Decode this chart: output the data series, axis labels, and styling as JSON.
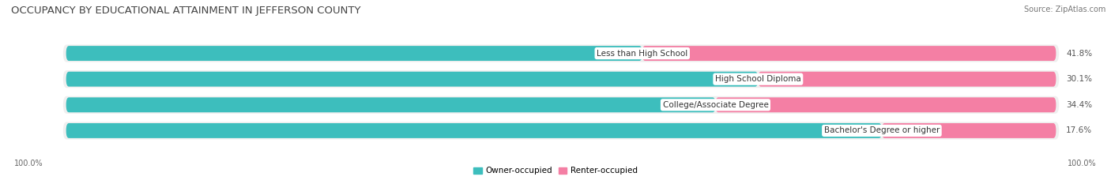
{
  "title": "OCCUPANCY BY EDUCATIONAL ATTAINMENT IN JEFFERSON COUNTY",
  "source": "Source: ZipAtlas.com",
  "categories": [
    "Less than High School",
    "High School Diploma",
    "College/Associate Degree",
    "Bachelor's Degree or higher"
  ],
  "owner_pct": [
    58.2,
    69.9,
    65.6,
    82.4
  ],
  "renter_pct": [
    41.8,
    30.1,
    34.4,
    17.6
  ],
  "owner_color": "#3DBEBD",
  "renter_color": "#F47FA4",
  "row_bg_color": "#EFEFEF",
  "fig_bg_color": "#FFFFFF",
  "title_fontsize": 9.5,
  "source_fontsize": 7,
  "pct_fontsize": 7.5,
  "cat_fontsize": 7.5,
  "axis_label_fontsize": 7,
  "legend_fontsize": 7.5,
  "left_axis_label": "100.0%",
  "right_axis_label": "100.0%"
}
